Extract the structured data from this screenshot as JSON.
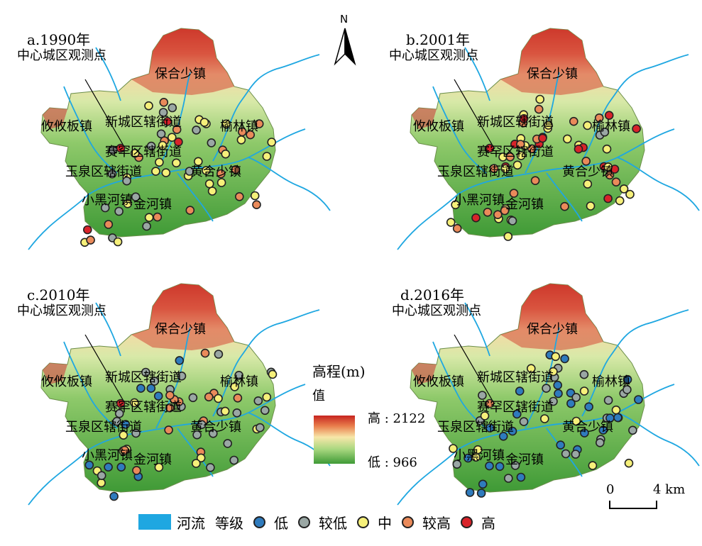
{
  "panels": [
    {
      "id": "a",
      "label": "a.1990年"
    },
    {
      "id": "b",
      "label": "b.2001年"
    },
    {
      "id": "c",
      "label": "c.2010年"
    },
    {
      "id": "d",
      "label": "d.2016年"
    }
  ],
  "place_names": {
    "center_obs": "中心城区观测点",
    "baohe": "保合少镇",
    "youyouban": "攸攸板镇",
    "xincheng": "新城区辖街道",
    "yulin": "榆林镇",
    "saihan": "赛罕区辖街道",
    "yuquan": "玉泉区辖街道",
    "huanghe": "黄合少镇",
    "xiaohei": "小黑河镇",
    "jinhe": "金河镇"
  },
  "north_arrow": {
    "label": "N"
  },
  "elevation_legend": {
    "title": "高程(m)",
    "value_label": "值",
    "high": "高 : 2122",
    "low": "低 : 966",
    "colors": [
      "#c7241f",
      "#e97f4d",
      "#f7e7a9",
      "#a8d77f",
      "#3f9a36"
    ]
  },
  "scale_bar": {
    "zero": "0",
    "end": "4 km"
  },
  "legend": {
    "river": "河流",
    "grade_title": "等级",
    "grades": [
      {
        "name": "低",
        "color": "#2f7bbd"
      },
      {
        "name": "较低",
        "color": "#9aa7a4"
      },
      {
        "name": "中",
        "color": "#f6f07a"
      },
      {
        "name": "较高",
        "color": "#ea8a5a"
      },
      {
        "name": "高",
        "color": "#d8232a"
      }
    ]
  },
  "colors": {
    "river": "#1fa7e1",
    "terrain_low": "#3f9a36",
    "terrain_high": "#c7241f"
  }
}
